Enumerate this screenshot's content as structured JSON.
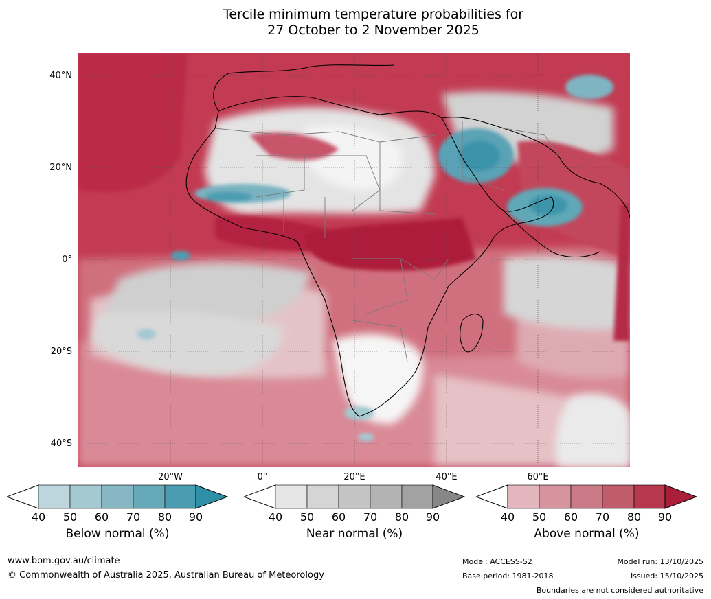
{
  "title": {
    "line1": "Tercile minimum temperature probabilities for",
    "line2": "27 October to 2 November 2025"
  },
  "map": {
    "lat_labels": [
      "40°N",
      "20°N",
      "0°",
      "20°S",
      "40°S"
    ],
    "lon_labels": [
      "20°W",
      "0°",
      "20°E",
      "40°E",
      "60°E"
    ]
  },
  "colorbars": [
    {
      "name": "below",
      "label": "Below normal (%)",
      "ticks": [
        "40",
        "50",
        "60",
        "70",
        "80",
        "90"
      ],
      "colors": [
        "#ffffff",
        "#bdd5dc",
        "#a5c9d1",
        "#87b7c3",
        "#66a9b8",
        "#4a9cb0",
        "#2f8fa6"
      ]
    },
    {
      "name": "near",
      "label": "Near normal (%)",
      "ticks": [
        "40",
        "50",
        "60",
        "70",
        "80",
        "90"
      ],
      "colors": [
        "#ffffff",
        "#e6e6e6",
        "#d5d5d5",
        "#c4c4c4",
        "#b3b3b3",
        "#a2a2a2",
        "#878787"
      ]
    },
    {
      "name": "above",
      "label": "Above normal (%)",
      "ticks": [
        "40",
        "50",
        "60",
        "70",
        "80",
        "90"
      ],
      "colors": [
        "#ffffff",
        "#e3b6bd",
        "#d6949e",
        "#c97a86",
        "#bf5d6d",
        "#b6384e",
        "#a91e3b"
      ]
    }
  ],
  "footer": {
    "url": "www.bom.gov.au/climate",
    "copyright": "© Commonwealth of Australia 2025, Australian Bureau of Meteorology",
    "model": "Model: ACCESS-S2",
    "base_period": "Base period: 1981-2018",
    "model_run": "Model run: 13/10/2025",
    "issued": "Issued: 15/10/2025",
    "disclaimer": "Boundaries are not considered authoritative"
  }
}
